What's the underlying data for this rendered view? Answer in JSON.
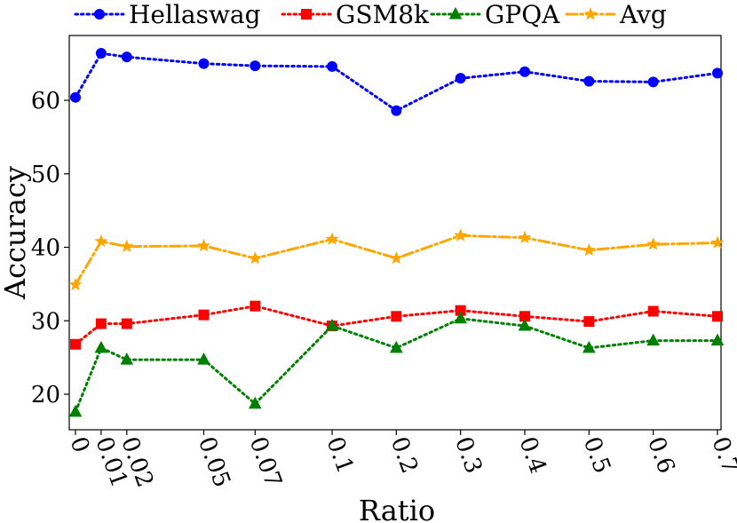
{
  "chart_data": {
    "type": "line",
    "title": "",
    "xlabel": "Ratio",
    "ylabel": "Accuracy",
    "categories": [
      "0",
      "0.01",
      "0.02",
      "0.05",
      "0.07",
      "0.1",
      "0.2",
      "0.3",
      "0.4",
      "0.5",
      "0.6",
      "0.7"
    ],
    "x": [
      0,
      0.01,
      0.02,
      0.05,
      0.07,
      0.1,
      0.2,
      0.3,
      0.4,
      0.5,
      0.6,
      0.7
    ],
    "x_scale": "piecewise",
    "x_scale_breakpoints": [
      0,
      0.1,
      0.7
    ],
    "ylim": [
      15,
      68
    ],
    "yticks": [
      20,
      30,
      40,
      50,
      60
    ],
    "grid": false,
    "legend": "top",
    "series": [
      {
        "name": "Hellaswag",
        "color": "#0000ff",
        "linestyle": "dotted",
        "marker": "circle",
        "values": [
          60.4,
          66.4,
          65.9,
          65.0,
          64.7,
          64.6,
          58.6,
          63.0,
          63.9,
          62.6,
          62.5,
          63.7
        ]
      },
      {
        "name": "GSM8k",
        "color": "#ff0000",
        "linestyle": "dotted",
        "marker": "square",
        "values": [
          26.8,
          29.6,
          29.6,
          30.8,
          32.0,
          29.3,
          30.6,
          31.4,
          30.6,
          29.9,
          31.3,
          30.6
        ]
      },
      {
        "name": "GPQA",
        "color": "#008000",
        "linestyle": "dotted",
        "marker": "triangle",
        "values": [
          17.6,
          26.3,
          24.7,
          24.7,
          18.7,
          29.3,
          26.3,
          30.3,
          29.3,
          26.3,
          27.3,
          27.3
        ]
      },
      {
        "name": "Avg",
        "color": "#ffa500",
        "linestyle": "dashdot",
        "marker": "star",
        "values": [
          34.9,
          40.8,
          40.1,
          40.2,
          38.5,
          41.1,
          38.5,
          41.6,
          41.3,
          39.6,
          40.4,
          40.6
        ]
      }
    ]
  }
}
